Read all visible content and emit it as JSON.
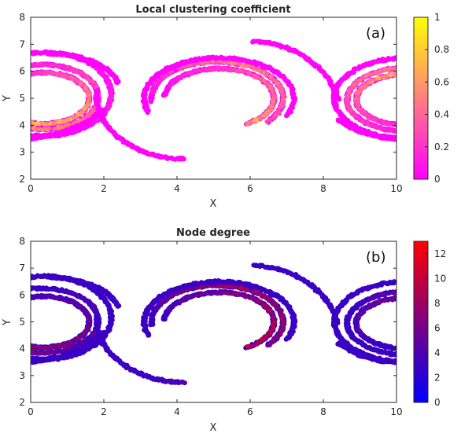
{
  "chart_data": [
    {
      "type": "scatter",
      "title": "Local clustering coefficient",
      "panel_label": "(a)",
      "xlabel": "X",
      "ylabel": "Y",
      "xlim": [
        0,
        10
      ],
      "ylim": [
        2,
        8
      ],
      "xticks": [
        "0",
        "2",
        "4",
        "6",
        "8",
        "10"
      ],
      "yticks": [
        "2",
        "3",
        "4",
        "5",
        "6",
        "7",
        "8"
      ],
      "colorbar": {
        "colormap": "spring",
        "range": [
          0,
          1
        ],
        "ticks": [
          "0",
          "0.2",
          "0.4",
          "0.6",
          "0.8",
          "1"
        ],
        "low_color": "#ff00ff",
        "high_color": "#ffff00"
      },
      "grid": false,
      "default_value": 0.02,
      "structures": [
        {
          "name": "left-inner-arc",
          "kind": "arc",
          "cx": 0.35,
          "cy": 5.0,
          "rx": 1.25,
          "ry": 0.95,
          "a0": -170,
          "a1": 160,
          "values": [
            0.9,
            0.5,
            0.05
          ]
        },
        {
          "name": "left-mid-arc",
          "kind": "arc",
          "cx": 0.3,
          "cy": 5.05,
          "rx": 1.55,
          "ry": 1.2,
          "a0": -140,
          "a1": 160,
          "values": [
            0.7,
            0.3,
            0.02
          ]
        },
        {
          "name": "left-outer-arc",
          "kind": "arc",
          "cx": 0.35,
          "cy": 5.15,
          "rx": 1.85,
          "ry": 1.55,
          "a0": -110,
          "a1": 105,
          "values": [
            0.02,
            0.1,
            0.02
          ]
        },
        {
          "name": "center-inner-arc",
          "kind": "arc",
          "cx": 5.15,
          "cy": 5.0,
          "rx": 1.5,
          "ry": 1.1,
          "a0": -60,
          "a1": 175,
          "values": [
            0.6,
            0.3,
            0.02
          ]
        },
        {
          "name": "center-mid-arc",
          "kind": "arc",
          "cx": 5.1,
          "cy": 5.0,
          "rx": 1.8,
          "ry": 1.35,
          "a0": -40,
          "a1": 185,
          "values": [
            0.3,
            0.5,
            0.02
          ]
        },
        {
          "name": "center-outer-arc",
          "kind": "arc",
          "cx": 5.15,
          "cy": 5.0,
          "rx": 2.05,
          "ry": 1.5,
          "a0": -25,
          "a1": 200,
          "values": [
            0.02,
            0.02,
            0.02
          ]
        },
        {
          "name": "right-inner-arc",
          "kind": "arc",
          "cx": 10.3,
          "cy": 4.95,
          "rx": 1.4,
          "ry": 0.95,
          "a0": 70,
          "a1": 290,
          "values": [
            0.7,
            0.4,
            0.05
          ]
        },
        {
          "name": "right-mid-arc",
          "kind": "arc",
          "cx": 10.4,
          "cy": 4.95,
          "rx": 1.75,
          "ry": 1.2,
          "a0": 65,
          "a1": 295,
          "values": [
            0.6,
            0.3,
            0.02
          ]
        },
        {
          "name": "right-outer-arc",
          "kind": "arc",
          "cx": 10.3,
          "cy": 5.0,
          "rx": 2.0,
          "ry": 1.5,
          "a0": 75,
          "a1": 280,
          "values": [
            0.02,
            0.05,
            0.02
          ]
        },
        {
          "name": "top-right-arc",
          "kind": "arc",
          "cx": 6.0,
          "cy": 4.2,
          "rx": 2.5,
          "ry": 2.9,
          "a0": 15,
          "a1": 88,
          "values": [
            0.02,
            0.05,
            0.02
          ]
        },
        {
          "name": "top-left-arc",
          "kind": "arc",
          "cx": 0.55,
          "cy": 5.2,
          "rx": 1.9,
          "ry": 1.45,
          "a0": 15,
          "a1": 92,
          "values": [
            0.02,
            0.02,
            0.02
          ]
        },
        {
          "name": "bottom-center-tail",
          "kind": "arc",
          "cx": 4.2,
          "cy": 5.1,
          "rx": 2.4,
          "ry": 2.35,
          "a0": 175,
          "a1": 270,
          "values": [
            0.02,
            0.02,
            0.05
          ]
        },
        {
          "name": "left-bottom-band",
          "kind": "line",
          "pts": [
            [
              0,
              3.5
            ],
            [
              0.8,
              3.7
            ],
            [
              1.6,
              4.15
            ],
            [
              2.0,
              4.6
            ]
          ],
          "values": [
            0.02,
            0.02,
            0.02
          ]
        },
        {
          "name": "right-bottom-band",
          "kind": "line",
          "pts": [
            [
              8.4,
              4.2
            ],
            [
              9.0,
              3.75
            ],
            [
              9.6,
              3.55
            ],
            [
              10,
              3.5
            ]
          ],
          "values": [
            0.02,
            0.02,
            0.02
          ]
        }
      ]
    },
    {
      "type": "scatter",
      "title": "Node degree",
      "panel_label": "(b)",
      "xlabel": "X",
      "ylabel": "Y",
      "xlim": [
        0,
        10
      ],
      "ylim": [
        2,
        8
      ],
      "xticks": [
        "0",
        "2",
        "4",
        "6",
        "8",
        "10"
      ],
      "yticks": [
        "2",
        "3",
        "4",
        "5",
        "6",
        "7",
        "8"
      ],
      "colorbar": {
        "colormap": "blue-red",
        "range": [
          0,
          13
        ],
        "ticks": [
          "0",
          "2",
          "4",
          "6",
          "8",
          "10",
          "12"
        ],
        "low_color": "#0000ff",
        "high_color": "#ff0000"
      },
      "grid": false,
      "default_value": 3,
      "structures": [
        {
          "name": "left-inner-arc",
          "kind": "arc",
          "cx": 0.35,
          "cy": 5.0,
          "rx": 1.25,
          "ry": 0.95,
          "a0": -170,
          "a1": 160,
          "values": [
            9,
            5,
            3
          ]
        },
        {
          "name": "left-mid-arc",
          "kind": "arc",
          "cx": 0.3,
          "cy": 5.05,
          "rx": 1.55,
          "ry": 1.2,
          "a0": -140,
          "a1": 160,
          "values": [
            7,
            4,
            3
          ]
        },
        {
          "name": "left-outer-arc",
          "kind": "arc",
          "cx": 0.35,
          "cy": 5.15,
          "rx": 1.85,
          "ry": 1.55,
          "a0": -110,
          "a1": 105,
          "values": [
            3,
            3,
            3
          ]
        },
        {
          "name": "center-inner-arc",
          "kind": "arc",
          "cx": 5.15,
          "cy": 5.0,
          "rx": 1.5,
          "ry": 1.1,
          "a0": -60,
          "a1": 175,
          "values": [
            9,
            7,
            3
          ]
        },
        {
          "name": "center-mid-arc",
          "kind": "arc",
          "cx": 5.1,
          "cy": 5.0,
          "rx": 1.8,
          "ry": 1.35,
          "a0": -40,
          "a1": 185,
          "values": [
            6,
            8,
            3
          ]
        },
        {
          "name": "center-outer-arc",
          "kind": "arc",
          "cx": 5.15,
          "cy": 5.0,
          "rx": 2.05,
          "ry": 1.5,
          "a0": -25,
          "a1": 200,
          "values": [
            3,
            3,
            3
          ]
        },
        {
          "name": "right-inner-arc",
          "kind": "arc",
          "cx": 10.3,
          "cy": 4.95,
          "rx": 1.4,
          "ry": 0.95,
          "a0": 70,
          "a1": 290,
          "values": [
            6,
            4,
            3
          ]
        },
        {
          "name": "right-mid-arc",
          "kind": "arc",
          "cx": 10.4,
          "cy": 4.95,
          "rx": 1.75,
          "ry": 1.2,
          "a0": 65,
          "a1": 295,
          "values": [
            5,
            3,
            3
          ]
        },
        {
          "name": "right-outer-arc",
          "kind": "arc",
          "cx": 10.3,
          "cy": 5.0,
          "rx": 2.0,
          "ry": 1.5,
          "a0": 75,
          "a1": 280,
          "values": [
            3,
            3,
            3
          ]
        },
        {
          "name": "top-right-arc",
          "kind": "arc",
          "cx": 6.0,
          "cy": 4.2,
          "rx": 2.5,
          "ry": 2.9,
          "a0": 15,
          "a1": 88,
          "values": [
            3,
            3,
            3
          ]
        },
        {
          "name": "top-left-arc",
          "kind": "arc",
          "cx": 0.55,
          "cy": 5.2,
          "rx": 1.9,
          "ry": 1.45,
          "a0": 15,
          "a1": 92,
          "values": [
            3,
            3,
            3
          ]
        },
        {
          "name": "bottom-center-tail",
          "kind": "arc",
          "cx": 4.2,
          "cy": 5.1,
          "rx": 2.4,
          "ry": 2.35,
          "a0": 175,
          "a1": 270,
          "values": [
            3,
            3,
            4
          ]
        },
        {
          "name": "left-bottom-band",
          "kind": "line",
          "pts": [
            [
              0,
              3.5
            ],
            [
              0.8,
              3.7
            ],
            [
              1.6,
              4.15
            ],
            [
              2.0,
              4.6
            ]
          ],
          "values": [
            3,
            3,
            3
          ]
        },
        {
          "name": "right-bottom-band",
          "kind": "line",
          "pts": [
            [
              8.4,
              4.2
            ],
            [
              9.0,
              3.75
            ],
            [
              9.6,
              3.55
            ],
            [
              10,
              3.5
            ]
          ],
          "values": [
            3,
            3,
            3
          ]
        }
      ]
    }
  ]
}
